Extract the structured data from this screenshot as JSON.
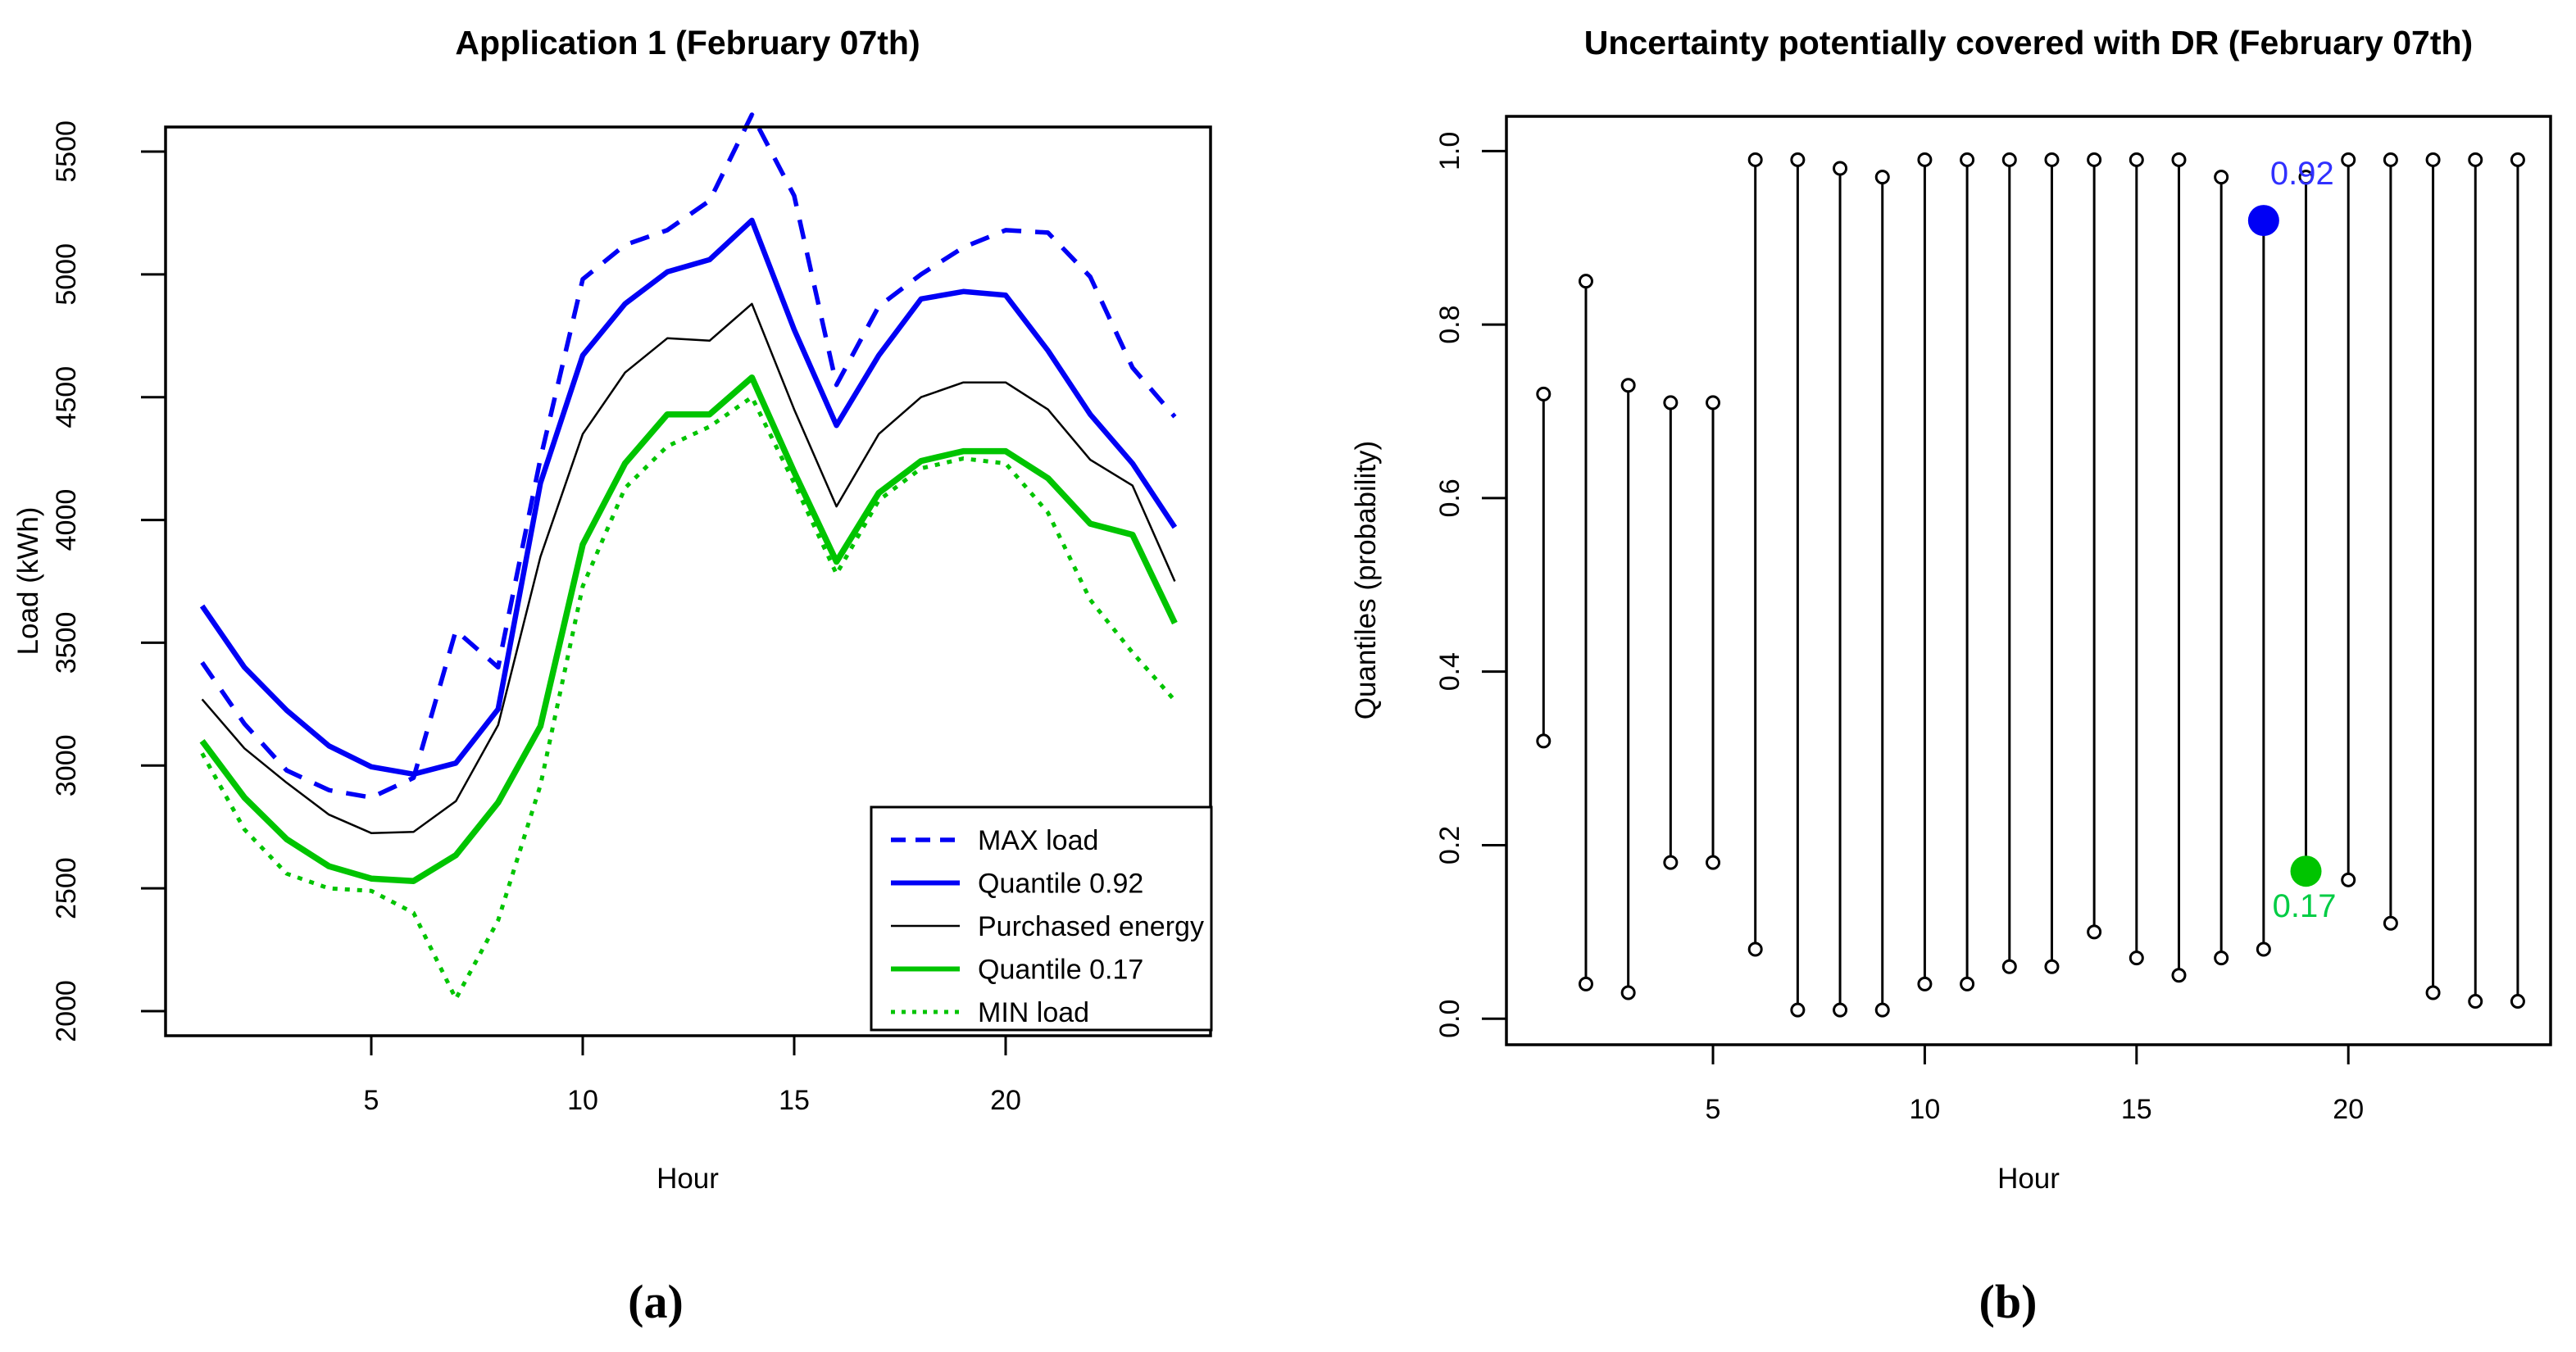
{
  "figure": {
    "captions": {
      "a": "(a)",
      "b": "(b)"
    }
  },
  "colors": {
    "blue": "#0000F5",
    "green": "#00C400",
    "black": "#000000",
    "blue_label": "#3030FF",
    "green_label": "#00CC44",
    "axis": "#000000",
    "background": "#FFFFFF"
  },
  "chart_data": [
    {
      "id": "load-forecast",
      "type": "line",
      "title": "Application 1 (February 07th)",
      "xlabel": "Hour",
      "ylabel": "Load (kWh)",
      "x": [
        1,
        2,
        3,
        4,
        5,
        6,
        7,
        8,
        9,
        10,
        11,
        12,
        13,
        14,
        15,
        16,
        17,
        18,
        19,
        20,
        21,
        22,
        23,
        24
      ],
      "xticks": [
        5,
        10,
        15,
        20
      ],
      "yticks": [
        2000,
        2500,
        3000,
        3500,
        4000,
        4500,
        5000,
        5500
      ],
      "ylim": [
        1900,
        5600
      ],
      "grid": false,
      "legend_position": "right-bottom-inside",
      "series": [
        {
          "name": "MAX load",
          "color_key": "blue",
          "style": "dashed",
          "width": 5.5,
          "values": [
            3420,
            3170,
            2980,
            2900,
            2870,
            2950,
            3550,
            3400,
            4250,
            4980,
            5120,
            5180,
            5300,
            5650,
            5320,
            4550,
            4870,
            5000,
            5110,
            5180,
            5170,
            4990,
            4620,
            4420
          ]
        },
        {
          "name": "Quantile 0.92",
          "color_key": "blue",
          "style": "solid",
          "width": 6.5,
          "values": [
            3650,
            3400,
            3225,
            3080,
            2995,
            2965,
            3010,
            3230,
            4150,
            4670,
            4880,
            5010,
            5060,
            5220,
            4775,
            4385,
            4670,
            4900,
            4930,
            4915,
            4690,
            4430,
            4230,
            3970
          ]
        },
        {
          "name": "Purchased energy",
          "color_key": "black",
          "style": "solid",
          "width": 2.5,
          "values": [
            3270,
            3070,
            2930,
            2800,
            2725,
            2730,
            2855,
            3165,
            3850,
            4350,
            4600,
            4740,
            4730,
            4880,
            4450,
            4055,
            4350,
            4500,
            4560,
            4560,
            4450,
            4245,
            4140,
            3750
          ]
        },
        {
          "name": "Quantile 0.17",
          "color_key": "green",
          "style": "solid",
          "width": 7.5,
          "values": [
            3100,
            2870,
            2700,
            2590,
            2540,
            2530,
            2635,
            2850,
            3160,
            3900,
            4230,
            4430,
            4430,
            4580,
            4195,
            3830,
            4110,
            4240,
            4280,
            4280,
            4170,
            3985,
            3940,
            3580
          ]
        },
        {
          "name": "MIN load",
          "color_key": "green",
          "style": "dotted",
          "width": 5,
          "values": [
            3050,
            2740,
            2560,
            2500,
            2490,
            2400,
            2050,
            2370,
            2920,
            3730,
            4130,
            4300,
            4380,
            4500,
            4150,
            3780,
            4080,
            4210,
            4250,
            4230,
            4030,
            3675,
            3460,
            3265
          ]
        }
      ]
    },
    {
      "id": "uncertainty-dr",
      "type": "interval",
      "title": "Uncertainty potentially covered with DR (February 07th)",
      "xlabel": "Hour",
      "ylabel": "Quantiles (probability)",
      "xticks": [
        5,
        10,
        15,
        20
      ],
      "yticks": [
        0.0,
        0.2,
        0.4,
        0.6,
        0.8,
        1.0
      ],
      "ylim": [
        -0.03,
        1.04
      ],
      "grid": false,
      "intervals": [
        {
          "hour": 1,
          "low": 0.32,
          "high": 0.72
        },
        {
          "hour": 2,
          "low": 0.04,
          "high": 0.85
        },
        {
          "hour": 3,
          "low": 0.03,
          "high": 0.73
        },
        {
          "hour": 4,
          "low": 0.18,
          "high": 0.71
        },
        {
          "hour": 5,
          "low": 0.18,
          "high": 0.71
        },
        {
          "hour": 6,
          "low": 0.08,
          "high": 0.99
        },
        {
          "hour": 7,
          "low": 0.01,
          "high": 0.99
        },
        {
          "hour": 8,
          "low": 0.01,
          "high": 0.98
        },
        {
          "hour": 9,
          "low": 0.01,
          "high": 0.97
        },
        {
          "hour": 10,
          "low": 0.04,
          "high": 0.99
        },
        {
          "hour": 11,
          "low": 0.04,
          "high": 0.99
        },
        {
          "hour": 12,
          "low": 0.06,
          "high": 0.99
        },
        {
          "hour": 13,
          "low": 0.06,
          "high": 0.99
        },
        {
          "hour": 14,
          "low": 0.1,
          "high": 0.99
        },
        {
          "hour": 15,
          "low": 0.07,
          "high": 0.99
        },
        {
          "hour": 16,
          "low": 0.05,
          "high": 0.99
        },
        {
          "hour": 17,
          "low": 0.07,
          "high": 0.97
        },
        {
          "hour": 18,
          "low": 0.08,
          "high": 0.92
        },
        {
          "hour": 19,
          "low": 0.17,
          "high": 0.97
        },
        {
          "hour": 20,
          "low": 0.16,
          "high": 0.99
        },
        {
          "hour": 21,
          "low": 0.11,
          "high": 0.99
        },
        {
          "hour": 22,
          "low": 0.03,
          "high": 0.99
        },
        {
          "hour": 23,
          "low": 0.02,
          "high": 0.99
        },
        {
          "hour": 24,
          "low": 0.02,
          "high": 0.99
        }
      ],
      "markers": [
        {
          "hour": 18,
          "value": 0.92,
          "label": "0.92",
          "color_key": "blue",
          "label_color_key": "blue_label",
          "end": "high",
          "no_circle": true
        },
        {
          "hour": 19,
          "value": 0.17,
          "label": "0.17",
          "color_key": "green",
          "label_color_key": "green_label",
          "end": "low",
          "no_circle": true
        }
      ]
    }
  ]
}
